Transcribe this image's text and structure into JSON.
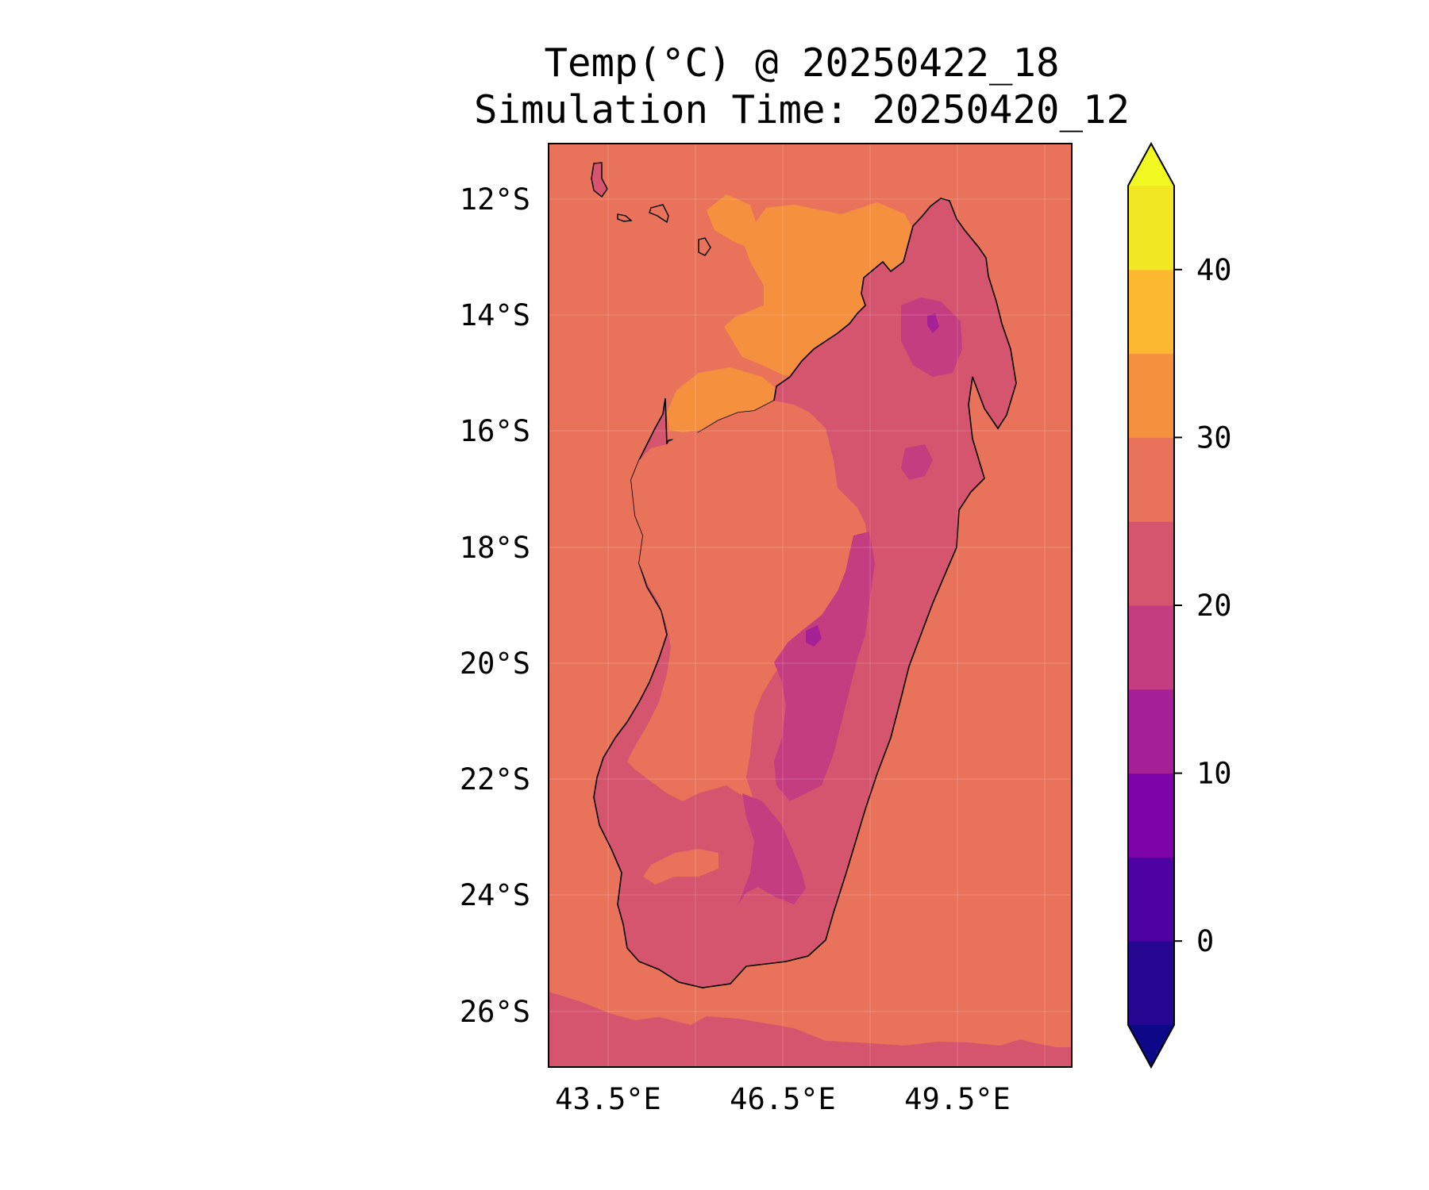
{
  "title": {
    "line1": "Temp(°C) @ 20250422_18",
    "line2": "Simulation Time: 20250420_12"
  },
  "map": {
    "region": "Madagascar",
    "lat_ticks": [
      "12°S",
      "14°S",
      "16°S",
      "18°S",
      "20°S",
      "22°S",
      "24°S",
      "26°S"
    ],
    "lon_ticks": [
      "43.5°E",
      "46.5°E",
      "49.5°E"
    ],
    "ocean_color": "#e8735a",
    "southern_band_color": "#d5546e",
    "warm_sea_color": "#f5903f"
  },
  "colorbar": {
    "ticks": [
      "0",
      "10",
      "20",
      "30",
      "40"
    ],
    "tick_values": [
      0,
      10,
      20,
      30,
      40
    ],
    "min": -5,
    "max": 45,
    "levels": [
      {
        "from": -5,
        "to": 0,
        "color": "#240691"
      },
      {
        "from": 0,
        "to": 5,
        "color": "#4e02a2"
      },
      {
        "from": 5,
        "to": 10,
        "color": "#7e03a8"
      },
      {
        "from": 10,
        "to": 15,
        "color": "#a62098"
      },
      {
        "from": 15,
        "to": 20,
        "color": "#c33d80"
      },
      {
        "from": 20,
        "to": 25,
        "color": "#d5546e"
      },
      {
        "from": 25,
        "to": 30,
        "color": "#e8735a"
      },
      {
        "from": 30,
        "to": 35,
        "color": "#f5903f"
      },
      {
        "from": 35,
        "to": 40,
        "color": "#fcb82e"
      },
      {
        "from": 40,
        "to": 45,
        "color": "#f1e723"
      }
    ],
    "under_color": "#0d0887",
    "over_color": "#f0f921"
  }
}
